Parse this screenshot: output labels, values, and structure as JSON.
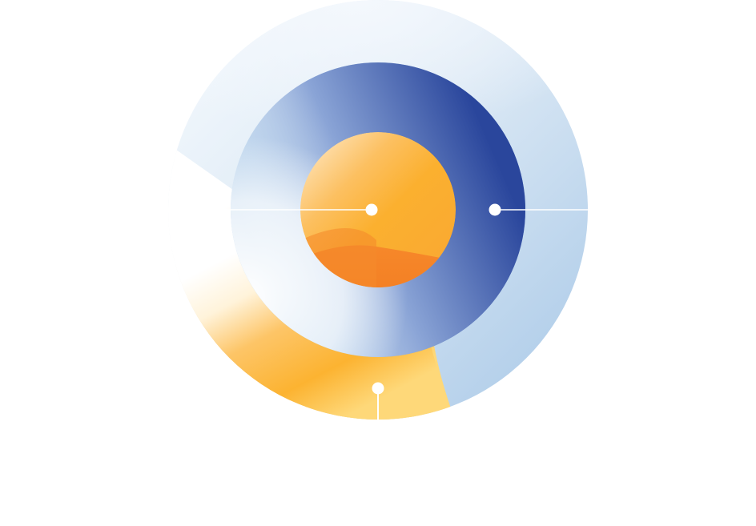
{
  "diagram": {
    "type": "concentric-rings",
    "ring_count": 3,
    "markers": [
      {
        "id": "center",
        "ring": "inner"
      },
      {
        "id": "middle",
        "ring": "middle"
      },
      {
        "id": "outer",
        "ring": "outer"
      }
    ],
    "colors": {
      "background": "#ffffff",
      "marker": "#ffffff",
      "leader_line": "#ffffff",
      "outer_warm": "#fcb934",
      "outer_cool": "#a9c9e8",
      "outer_pale": "#f4f8fd",
      "middle_light": "#a9c8e6",
      "middle_dark": "#2c4ba0",
      "middle_pale": "#ffffff",
      "inner_light": "#ffe8c6",
      "inner_mid": "#fbb23a",
      "inner_dark": "#f37f23"
    }
  }
}
